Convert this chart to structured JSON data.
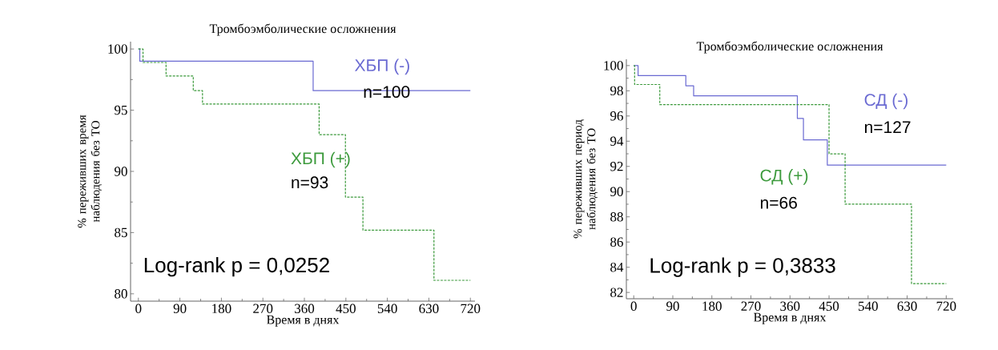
{
  "chart_data": [
    {
      "type": "step",
      "title": "Тромбоэмболические осложнения",
      "xlabel": "Время в днях",
      "ylabel": "% переживших время наблюдения без ТО",
      "xlim": [
        -17,
        730
      ],
      "ylim": [
        79.4,
        100.6
      ],
      "xticks": [
        0,
        90,
        180,
        270,
        360,
        450,
        540,
        630,
        720
      ],
      "yticks": [
        80,
        85,
        90,
        95,
        100
      ],
      "series": [
        {
          "name": "ХБП (-)",
          "color": "#6a6ad2",
          "line_style": "solid",
          "x": [
            0,
            3,
            379,
            720
          ],
          "values": [
            100,
            99.0,
            96.6,
            96.6
          ]
        },
        {
          "name": "ХБП (+)",
          "color": "#3c9a3c",
          "line_style": "dashed",
          "x": [
            0,
            10,
            60,
            119,
            139,
            392,
            449,
            487,
            641,
            720
          ],
          "values": [
            100,
            98.9,
            97.8,
            96.6,
            95.5,
            93.0,
            87.9,
            85.2,
            81.1,
            81.1
          ]
        }
      ],
      "annotations": [
        "n=100",
        "n=93",
        "Log-rank p = 0,0252"
      ]
    },
    {
      "type": "step",
      "title": "Тромбоэмболические осложнения",
      "xlabel": "Время в днях",
      "ylabel": "% переживших период наблюдения без ТО",
      "xlim": [
        -17,
        736
      ],
      "ylim": [
        81.5,
        100.5
      ],
      "xticks": [
        0,
        90,
        180,
        270,
        360,
        450,
        540,
        630,
        720
      ],
      "yticks": [
        82,
        84,
        86,
        88,
        90,
        92,
        94,
        96,
        98,
        100
      ],
      "series": [
        {
          "name": "СД (-)",
          "color": "#6a6ad2",
          "line_style": "solid",
          "x": [
            0,
            10,
            120,
            138,
            377,
            391,
            446,
            720
          ],
          "values": [
            100,
            99.2,
            98.4,
            97.6,
            95.8,
            94.1,
            92.1,
            92.1
          ]
        },
        {
          "name": "СД (+)",
          "color": "#3c9a3c",
          "line_style": "dashed",
          "x": [
            0,
            2,
            60,
            450,
            487,
            640,
            720
          ],
          "values": [
            100,
            98.5,
            96.9,
            93.0,
            89.0,
            82.7,
            82.7
          ]
        }
      ],
      "annotations": [
        "n=127",
        "n=66",
        "Log-rank p = 0,3833"
      ]
    }
  ]
}
